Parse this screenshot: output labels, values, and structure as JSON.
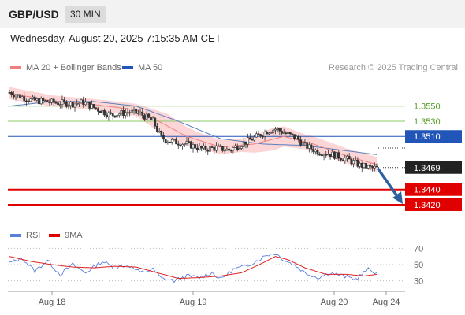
{
  "header": {
    "symbol": "GBP/USD",
    "timeframe": "30 MIN"
  },
  "datetime": "Wednesday, August 20, 2025 7:15:35 AM CET",
  "legend": {
    "ma20_bb": "MA 20 + Bollinger Bands",
    "ma50": "MA 50",
    "rsi": "RSI",
    "ma9": "9MA"
  },
  "credit": "Research © 2025 Trading Central",
  "colors": {
    "bb_band": "#fcd6d6",
    "ma20": "#f08080",
    "ma50": "#5a7fc0",
    "resistance_line": "#8cc866",
    "pivot_line": "#2155b8",
    "support_line": "#e00000",
    "candle_up": "#444444",
    "candle_down": "#333333",
    "rsi_line": "#5b7fdc",
    "rsi_ma": "#e02020",
    "arrow": "#2e5fa0"
  },
  "chart_data": [
    {
      "type": "candlestick",
      "ylim": [
        1.3393,
        1.3586
      ],
      "x_ticks": [
        "Aug 18",
        "Aug 19",
        "Aug 20",
        "Aug 24"
      ],
      "levels": [
        {
          "value": 1.355,
          "label": "1.3550",
          "kind": "resistance"
        },
        {
          "value": 1.353,
          "label": "1.3530",
          "kind": "resistance"
        },
        {
          "value": 1.351,
          "label": "1.3510",
          "kind": "pivot"
        },
        {
          "value": 1.344,
          "label": "1.3440",
          "kind": "support"
        },
        {
          "value": 1.342,
          "label": "1.3420",
          "kind": "support"
        }
      ],
      "last_price": {
        "value": 1.3469,
        "label": "1.3469"
      },
      "close_anchors": [
        [
          0,
          1.3568
        ],
        [
          10,
          1.3558
        ],
        [
          20,
          1.3555
        ],
        [
          30,
          1.3553
        ],
        [
          35,
          1.3555
        ],
        [
          40,
          1.3548
        ],
        [
          48,
          1.3538
        ],
        [
          56,
          1.3542
        ],
        [
          62,
          1.354
        ],
        [
          68,
          1.353
        ],
        [
          72,
          1.3508
        ],
        [
          76,
          1.3504
        ],
        [
          84,
          1.35
        ],
        [
          92,
          1.3493
        ],
        [
          98,
          1.3495
        ],
        [
          104,
          1.3492
        ],
        [
          110,
          1.35
        ],
        [
          116,
          1.3508
        ],
        [
          122,
          1.3517
        ],
        [
          126,
          1.352
        ],
        [
          130,
          1.3515
        ],
        [
          136,
          1.3508
        ],
        [
          140,
          1.3498
        ],
        [
          146,
          1.349
        ],
        [
          152,
          1.3487
        ],
        [
          160,
          1.348
        ],
        [
          166,
          1.3472
        ],
        [
          172,
          1.3468
        ],
        [
          174,
          1.3469
        ]
      ],
      "ma20_anchors": [
        [
          0,
          1.3567
        ],
        [
          20,
          1.3557
        ],
        [
          40,
          1.3552
        ],
        [
          60,
          1.3545
        ],
        [
          72,
          1.3528
        ],
        [
          84,
          1.351
        ],
        [
          100,
          1.3496
        ],
        [
          116,
          1.35
        ],
        [
          130,
          1.351
        ],
        [
          144,
          1.35
        ],
        [
          160,
          1.3484
        ],
        [
          174,
          1.3473
        ]
      ],
      "ma50_anchors": [
        [
          0,
          1.355
        ],
        [
          20,
          1.3556
        ],
        [
          40,
          1.3556
        ],
        [
          60,
          1.355
        ],
        [
          80,
          1.353
        ],
        [
          100,
          1.3507
        ],
        [
          120,
          1.35
        ],
        [
          140,
          1.3498
        ],
        [
          160,
          1.3491
        ],
        [
          174,
          1.3486
        ]
      ],
      "bb_halfwidth_anchors": [
        [
          0,
          0.0008
        ],
        [
          30,
          0.0007
        ],
        [
          60,
          0.0008
        ],
        [
          75,
          0.0016
        ],
        [
          90,
          0.001
        ],
        [
          110,
          0.0009
        ],
        [
          125,
          0.0015
        ],
        [
          140,
          0.001
        ],
        [
          160,
          0.001
        ],
        [
          174,
          0.001
        ]
      ],
      "projection": {
        "from": 1.3469,
        "to": 1.3424
      }
    },
    {
      "type": "line",
      "title": "RSI",
      "ylim": [
        20,
        80
      ],
      "y_ticks": [
        70,
        50,
        30
      ],
      "series": [
        {
          "name": "RSI",
          "anchors": [
            [
              0,
              52
            ],
            [
              6,
              58
            ],
            [
              12,
              42
            ],
            [
              18,
              55
            ],
            [
              24,
              38
            ],
            [
              30,
              50
            ],
            [
              36,
              40
            ],
            [
              44,
              54
            ],
            [
              50,
              46
            ],
            [
              56,
              50
            ],
            [
              62,
              40
            ],
            [
              68,
              44
            ],
            [
              72,
              33
            ],
            [
              78,
              30
            ],
            [
              84,
              36
            ],
            [
              90,
              34
            ],
            [
              96,
              40
            ],
            [
              100,
              32
            ],
            [
              106,
              44
            ],
            [
              112,
              48
            ],
            [
              118,
              56
            ],
            [
              122,
              62
            ],
            [
              126,
              64
            ],
            [
              130,
              56
            ],
            [
              136,
              48
            ],
            [
              140,
              40
            ],
            [
              146,
              34
            ],
            [
              152,
              40
            ],
            [
              158,
              36
            ],
            [
              164,
              32
            ],
            [
              170,
              44
            ],
            [
              174,
              40
            ]
          ]
        },
        {
          "name": "9MA",
          "anchors": [
            [
              0,
              60
            ],
            [
              10,
              54
            ],
            [
              20,
              50
            ],
            [
              30,
              47
            ],
            [
              40,
              46
            ],
            [
              50,
              48
            ],
            [
              60,
              47
            ],
            [
              70,
              40
            ],
            [
              80,
              33
            ],
            [
              90,
              34
            ],
            [
              100,
              36
            ],
            [
              110,
              40
            ],
            [
              120,
              52
            ],
            [
              126,
              60
            ],
            [
              132,
              56
            ],
            [
              140,
              46
            ],
            [
              150,
              38
            ],
            [
              160,
              38
            ],
            [
              168,
              36
            ],
            [
              174,
              38
            ]
          ]
        }
      ]
    }
  ]
}
